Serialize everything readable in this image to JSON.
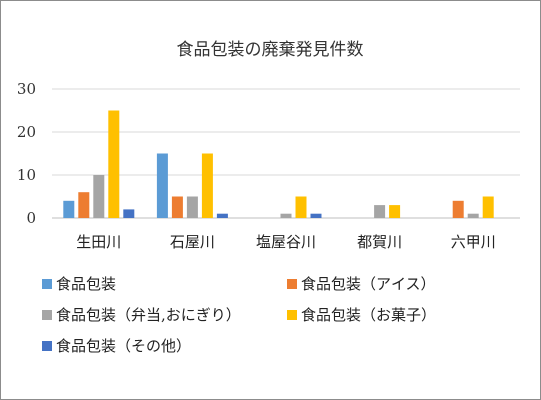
{
  "chart_data": {
    "type": "bar",
    "title": "食品包装の廃棄発見件数",
    "xlabel": "",
    "ylabel": "",
    "ylim": [
      0,
      30
    ],
    "yticks": [
      0,
      10,
      20,
      30
    ],
    "grid": true,
    "legend_position": "bottom",
    "categories": [
      "生田川",
      "石屋川",
      "塩屋谷川",
      "都賀川",
      "六甲川"
    ],
    "series": [
      {
        "name": "食品包装",
        "color": "#5b9bd5",
        "values": [
          4,
          15,
          0,
          0,
          0
        ]
      },
      {
        "name": "食品包装（アイス）",
        "color": "#ed7d31",
        "values": [
          6,
          5,
          0,
          0,
          4
        ]
      },
      {
        "name": "食品包装（弁当,おにぎり）",
        "color": "#a5a5a5",
        "values": [
          10,
          5,
          1,
          3,
          1
        ]
      },
      {
        "name": "食品包装（お菓子）",
        "color": "#ffc000",
        "values": [
          25,
          15,
          5,
          3,
          5
        ]
      },
      {
        "name": "食品包装（その他）",
        "color": "#4472c4",
        "values": [
          2,
          1,
          1,
          0,
          0
        ]
      }
    ]
  }
}
